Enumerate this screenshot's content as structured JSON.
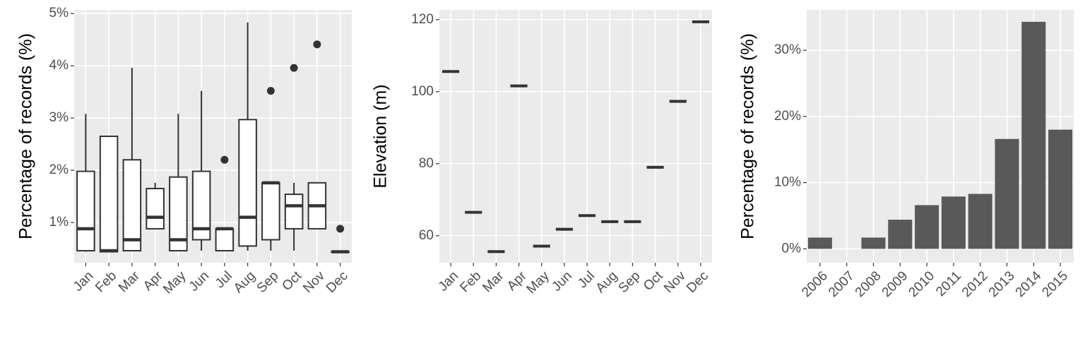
{
  "chart_data": [
    {
      "type": "box",
      "y_label": "Percentage of records (%)",
      "categories": [
        "Jan",
        "Feb",
        "Mar",
        "Apr",
        "May",
        "Jun",
        "Jul",
        "Aug",
        "Sep",
        "Oct",
        "Nov",
        "Dec"
      ],
      "boxes": [
        {
          "low": 0.44,
          "q1": 0.46,
          "median": 0.88,
          "q3": 1.98,
          "high": 3.08,
          "outliers": []
        },
        {
          "low": 0.44,
          "q1": 0.44,
          "median": 0.46,
          "q3": 2.65,
          "high": 2.65,
          "outliers": []
        },
        {
          "low": 0.46,
          "q1": 0.46,
          "median": 0.67,
          "q3": 2.2,
          "high": 3.96,
          "outliers": []
        },
        {
          "low": 0.88,
          "q1": 0.88,
          "median": 1.1,
          "q3": 1.65,
          "high": 1.76,
          "outliers": []
        },
        {
          "low": 0.46,
          "q1": 0.46,
          "median": 0.67,
          "q3": 1.87,
          "high": 3.08,
          "outliers": []
        },
        {
          "low": 0.46,
          "q1": 0.67,
          "median": 0.88,
          "q3": 1.98,
          "high": 3.52,
          "outliers": []
        },
        {
          "low": 0.46,
          "q1": 0.46,
          "median": 0.88,
          "q3": 0.88,
          "high": 0.88,
          "outliers": [
            2.2
          ]
        },
        {
          "low": 0.46,
          "q1": 0.55,
          "median": 1.1,
          "q3": 2.97,
          "high": 4.83,
          "outliers": []
        },
        {
          "low": 0.46,
          "q1": 0.67,
          "median": 1.76,
          "q3": 1.76,
          "high": 1.76,
          "outliers": [
            3.52
          ]
        },
        {
          "low": 0.46,
          "q1": 0.88,
          "median": 1.32,
          "q3": 1.54,
          "high": 1.76,
          "outliers": [
            3.96
          ]
        },
        {
          "low": 0.88,
          "q1": 0.88,
          "median": 1.32,
          "q3": 1.76,
          "high": 1.76,
          "outliers": [
            4.41
          ]
        },
        {
          "low": 0.44,
          "q1": 0.44,
          "median": 0.44,
          "q3": 0.44,
          "high": 0.44,
          "outliers": [
            0.88
          ]
        }
      ],
      "color": "#333333",
      "ylim": [
        0.23,
        5.07
      ],
      "yticks": [
        {
          "value": 1,
          "label": "1%"
        },
        {
          "value": 2,
          "label": "2%"
        },
        {
          "value": 3,
          "label": "3%"
        },
        {
          "value": 4,
          "label": "4%"
        },
        {
          "value": 5,
          "label": "5%"
        }
      ],
      "grid": true
    },
    {
      "type": "crossbar",
      "y_label": "Elevation (m)",
      "categories": [
        "Jan",
        "Feb",
        "Mar",
        "Apr",
        "May",
        "Jun",
        "Jul",
        "Aug",
        "Sep",
        "Oct",
        "Nov",
        "Dec"
      ],
      "values": [
        105.6,
        66.5,
        55.6,
        101.6,
        57.1,
        61.8,
        65.6,
        63.9,
        63.9,
        79.0,
        97.3,
        119.4
      ],
      "color": "#333333",
      "ylim": [
        52.5,
        122.7
      ],
      "yticks": [
        60,
        80,
        100,
        120
      ],
      "grid": true
    },
    {
      "type": "bar",
      "y_label": "Percentage of records (%)",
      "categories": [
        "2006",
        "2007",
        "2008",
        "2009",
        "2010",
        "2011",
        "2012",
        "2013",
        "2014",
        "2015"
      ],
      "values": [
        1.7,
        0,
        1.7,
        4.4,
        6.6,
        7.9,
        8.3,
        16.6,
        34.3,
        18.0
      ],
      "color": "#595959",
      "ylim": [
        -2.1,
        36.1
      ],
      "yticks": [
        {
          "value": 0,
          "label": "0%"
        },
        {
          "value": 10,
          "label": "10%"
        },
        {
          "value": 20,
          "label": "20%"
        },
        {
          "value": 30,
          "label": "30%"
        }
      ],
      "grid": true
    }
  ]
}
